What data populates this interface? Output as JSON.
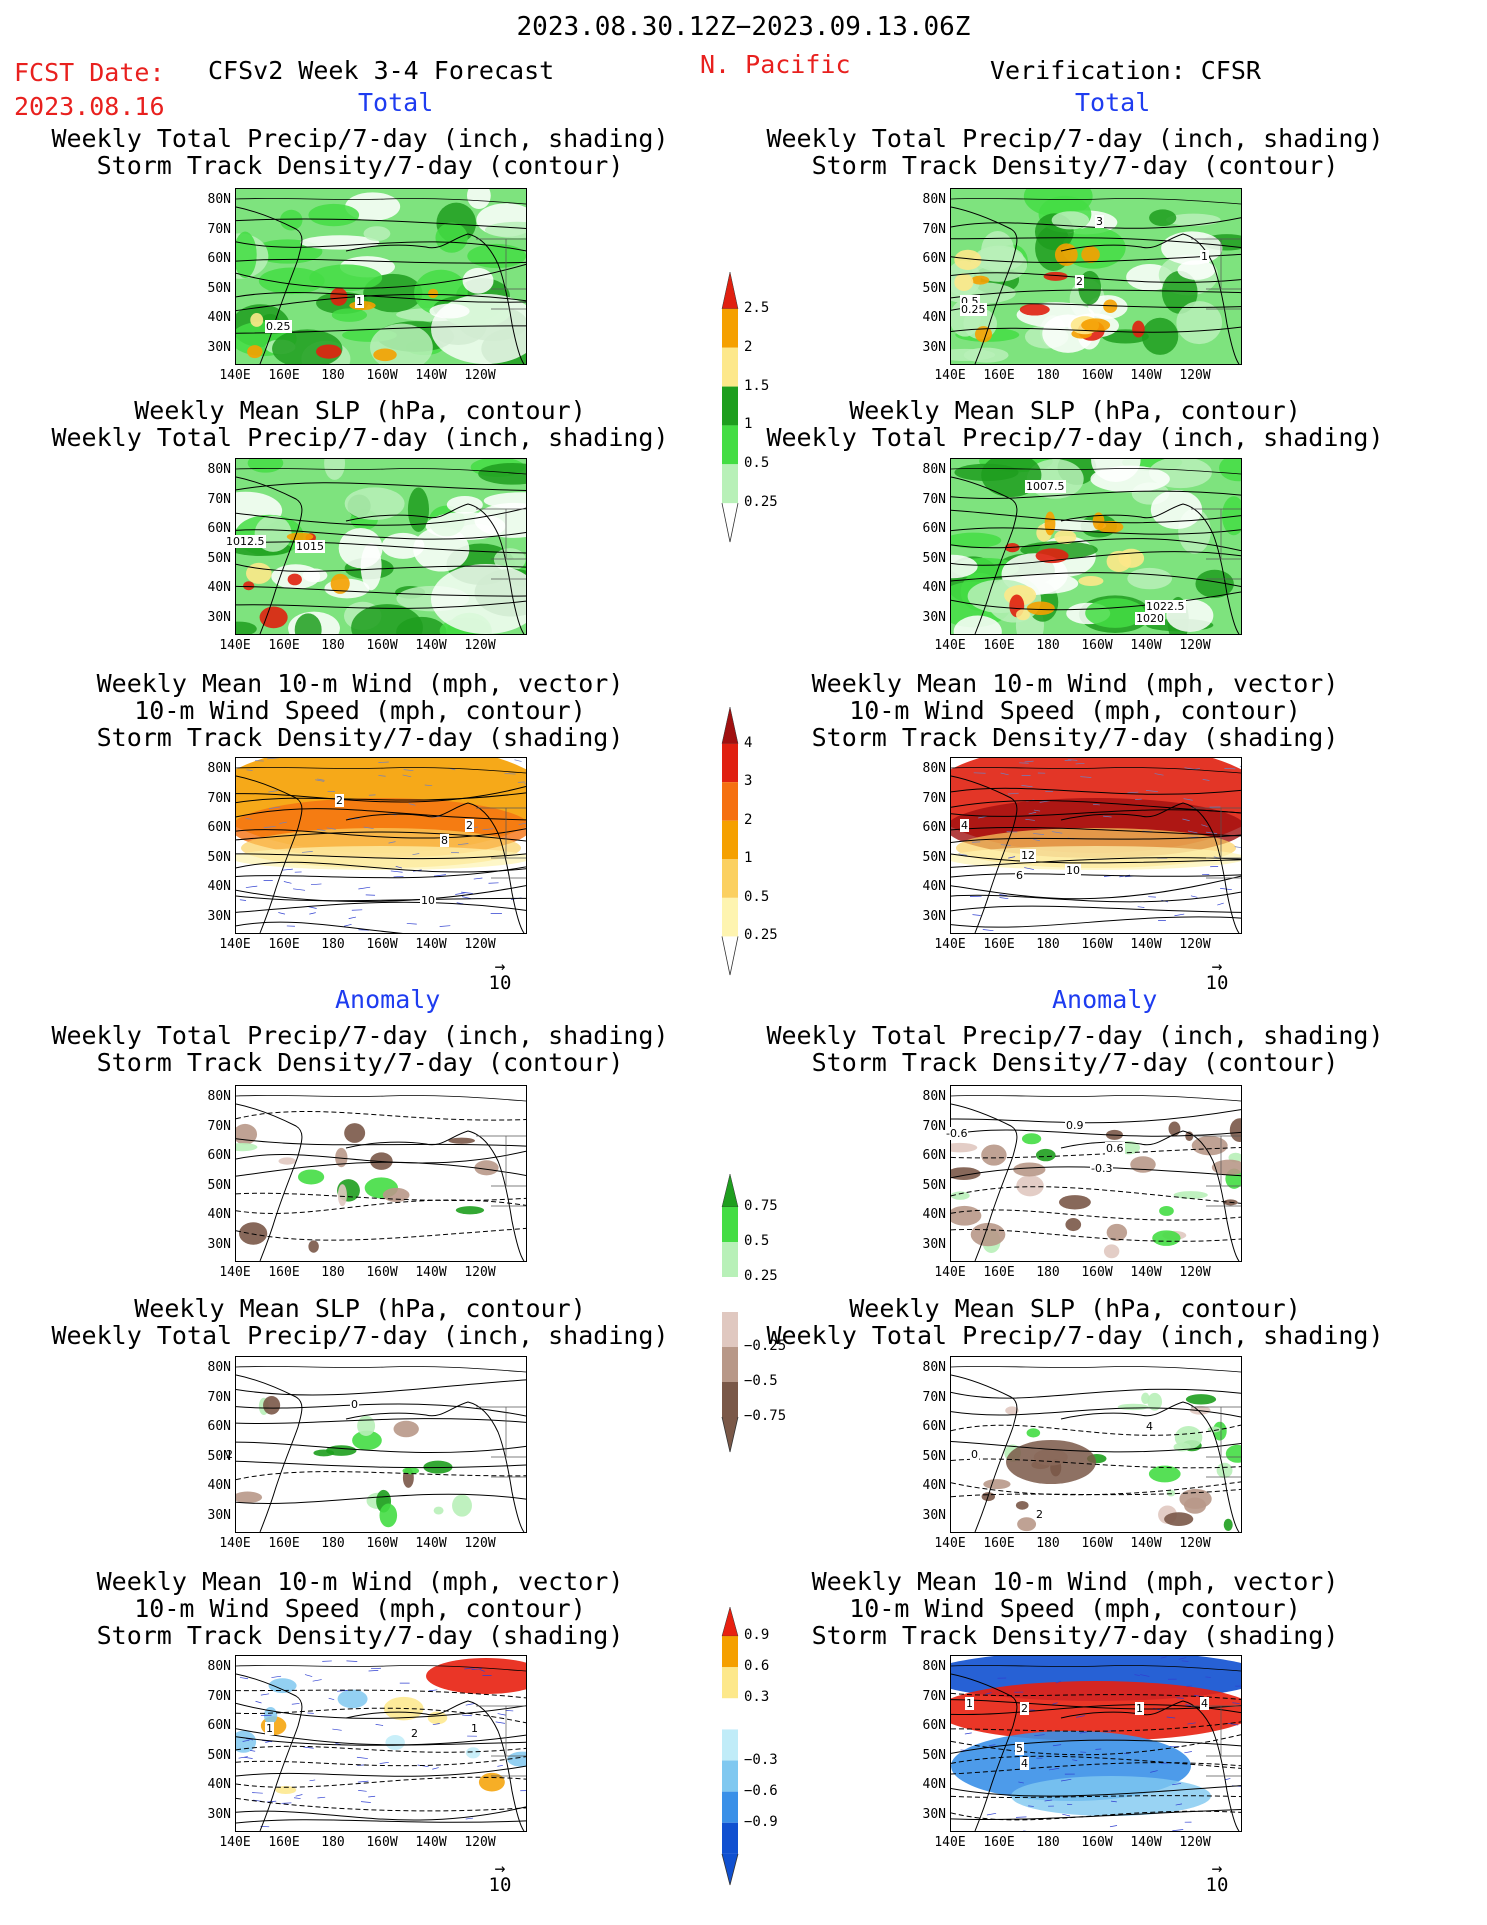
{
  "header": {
    "date_range": "2023.08.30.12Z−2023.09.13.06Z",
    "fcst_label": "FCST Date:",
    "fcst_date": "2023.08.16",
    "model": "CFSv2 Week 3-4 Forecast",
    "region": "N. Pacific",
    "verification": "Verification: CFSR"
  },
  "sections": {
    "total": "Total",
    "anomaly": "Anomaly"
  },
  "panels": [
    {
      "title": [
        "Weekly Total Precip/7-day (inch, shading)",
        "Storm Track Density/7-day (contour)"
      ],
      "labels": [
        "0.25",
        "1"
      ]
    },
    {
      "title": [
        "Weekly Total Precip/7-day (inch, shading)",
        "Storm Track Density/7-day (contour)"
      ],
      "labels": [
        "3",
        "1",
        "2",
        "0.5",
        "0.25"
      ]
    },
    {
      "title": [
        "Weekly Mean SLP (hPa, contour)",
        "Weekly Total Precip/7-day (inch, shading)"
      ],
      "labels": [
        "1012.5",
        "1015"
      ]
    },
    {
      "title": [
        "Weekly Mean SLP (hPa, contour)",
        "Weekly Total Precip/7-day (inch, shading)"
      ],
      "labels": [
        "1007.5",
        "1022.5",
        "1020"
      ]
    },
    {
      "title": [
        "Weekly Mean 10-m Wind (mph, vector)",
        "10-m Wind Speed (mph, contour)",
        "Storm Track Density/7-day (shading)"
      ],
      "labels": [
        "2",
        "2",
        "8",
        "10"
      ]
    },
    {
      "title": [
        "Weekly Mean 10-m Wind (mph, vector)",
        "10-m Wind Speed (mph, contour)",
        "Storm Track Density/7-day (shading)"
      ],
      "labels": [
        "4",
        "12",
        "10",
        "6"
      ]
    },
    {
      "title": [
        "Weekly Total Precip/7-day (inch, shading)",
        "Storm Track Density/7-day (contour)"
      ],
      "labels": []
    },
    {
      "title": [
        "Weekly Total Precip/7-day (inch, shading)",
        "Storm Track Density/7-day (contour)"
      ],
      "labels": [
        "-0.6",
        "0.9",
        "0.6",
        "-0.3"
      ]
    },
    {
      "title": [
        "Weekly Mean SLP (hPa, contour)",
        "Weekly Total Precip/7-day (inch, shading)"
      ],
      "labels": [
        "0",
        "2"
      ]
    },
    {
      "title": [
        "Weekly Mean SLP (hPa, contour)",
        "Weekly Total Precip/7-day (inch, shading)"
      ],
      "labels": [
        "0",
        "4",
        "2"
      ]
    },
    {
      "title": [
        "Weekly Mean 10-m Wind (mph, vector)",
        "10-m Wind Speed (mph, contour)",
        "Storm Track Density/7-day (shading)"
      ],
      "labels": [
        "1",
        "2",
        "1"
      ]
    },
    {
      "title": [
        "Weekly Mean 10-m Wind (mph, vector)",
        "10-m Wind Speed (mph, contour)",
        "Storm Track Density/7-day (shading)"
      ],
      "labels": [
        "1",
        "2",
        "1",
        "4",
        "5",
        "4"
      ]
    }
  ],
  "axes": {
    "lat": [
      "80N",
      "70N",
      "60N",
      "50N",
      "40N",
      "30N"
    ],
    "lon": [
      "140E",
      "160E",
      "180",
      "160W",
      "140W",
      "120W"
    ]
  },
  "vector_ref": "10",
  "colorbars": {
    "precip_total": {
      "labels": [
        "2.5",
        "2",
        "1.5",
        "1",
        "0.5",
        "0.25"
      ],
      "colors": [
        "#e02010",
        "#f5a000",
        "#fde88a",
        "#1e9e1e",
        "#44dd44",
        "#b8f0b8"
      ]
    },
    "storm_total": {
      "labels": [
        "4",
        "3",
        "2",
        "1",
        "0.5",
        "0.25"
      ],
      "colors": [
        "#a01010",
        "#e02010",
        "#f57010",
        "#f5a000",
        "#fbd060",
        "#fef4b0"
      ]
    },
    "precip_anom": {
      "labels": [
        "0.75",
        "0.5",
        "0.25",
        "−0.25",
        "−0.5",
        "−0.75"
      ],
      "colors": [
        "#1e9e1e",
        "#44dd44",
        "#b8f0b8",
        "#ffffff",
        "#e0c8c0",
        "#b89888",
        "#7a5848"
      ]
    },
    "storm_anom": {
      "labels": [
        "0.9",
        "0.6",
        "0.3",
        "−0.3",
        "−0.6",
        "−0.9"
      ],
      "colors": [
        "#e82010",
        "#f5a000",
        "#fde88a",
        "#ffffff",
        "#c0ecf8",
        "#80c8f0",
        "#3a90e8",
        "#1050d0"
      ]
    }
  }
}
